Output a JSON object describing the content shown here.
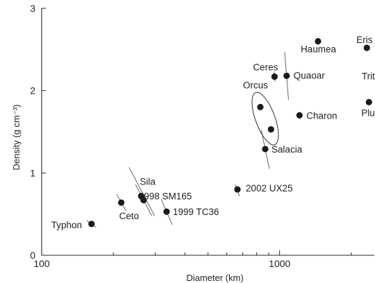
{
  "chart_data": {
    "type": "scatter",
    "xlabel": "Diameter (km)",
    "ylabel": "Density (g cm⁻³)",
    "x_scale": "log",
    "xlim": [
      100,
      2500
    ],
    "ylim": [
      0,
      3
    ],
    "x_ticks": [
      {
        "value": 100,
        "label": "100"
      },
      {
        "value": 1000,
        "label": "1000"
      }
    ],
    "y_ticks": [
      {
        "value": 0,
        "label": "0"
      },
      {
        "value": 1,
        "label": "1"
      },
      {
        "value": 2,
        "label": "2"
      },
      {
        "value": 3,
        "label": "3"
      }
    ],
    "points": [
      {
        "name": "Typhon",
        "x": 162,
        "y": 0.38
      },
      {
        "name": "Ceto",
        "x": 216,
        "y": 0.64
      },
      {
        "name": "Sila",
        "x": 262,
        "y": 0.72
      },
      {
        "name": "1998 SM165",
        "x": 268,
        "y": 0.67
      },
      {
        "name": "1999 TC36",
        "x": 335,
        "y": 0.53
      },
      {
        "name": "2002 UX25",
        "x": 665,
        "y": 0.8
      },
      {
        "name": "Salacia",
        "x": 870,
        "y": 1.29
      },
      {
        "name": "Orcus",
        "x": 830,
        "y": 1.8
      },
      {
        "name": "Orcus",
        "x": 920,
        "y": 1.53
      },
      {
        "name": "Ceres",
        "x": 952,
        "y": 2.17
      },
      {
        "name": "Quaoar",
        "x": 1070,
        "y": 2.18
      },
      {
        "name": "Charon",
        "x": 1212,
        "y": 1.7
      },
      {
        "name": "Haumea",
        "x": 1450,
        "y": 2.6
      },
      {
        "name": "Eris",
        "x": 2326,
        "y": 2.52
      },
      {
        "name": "Pluto",
        "x": 2374,
        "y": 1.86
      },
      {
        "name": "Triton",
        "x": 2707,
        "y": 2.06
      }
    ]
  }
}
